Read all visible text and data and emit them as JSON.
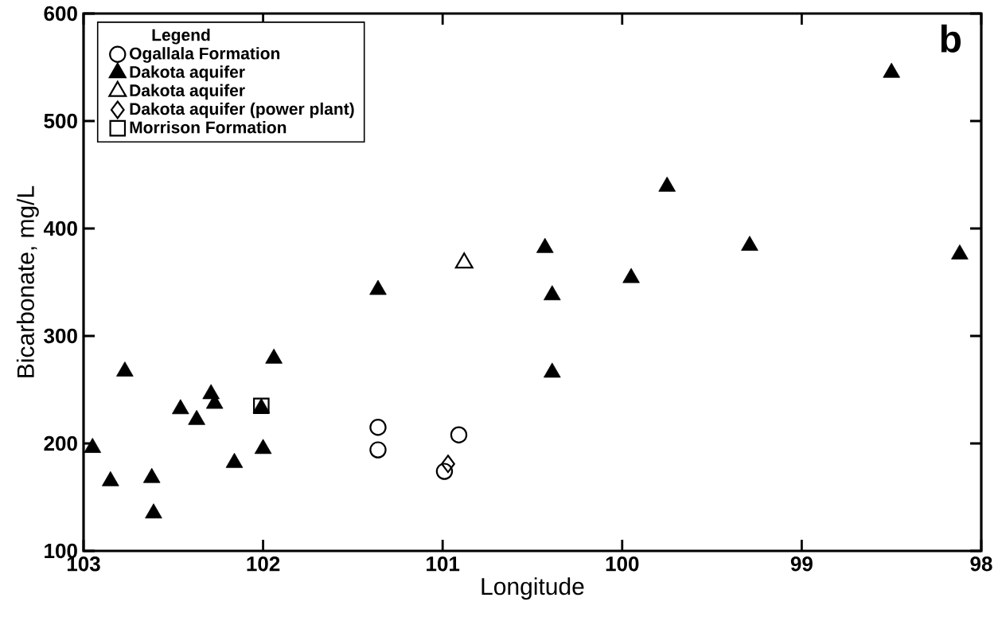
{
  "chart_data": {
    "type": "scatter",
    "xlabel": "Longitude",
    "ylabel": "Bicarbonate, mg/L",
    "legend_title": "Legend",
    "legend": "top left",
    "marker": "triangle",
    "annotations": [
      "b"
    ],
    "xlim": [
      103,
      98
    ],
    "xticks": [
      103,
      102,
      101,
      100,
      99,
      98
    ],
    "ylim": [
      100,
      600
    ],
    "yticks": [
      100,
      200,
      300,
      400,
      500,
      600
    ],
    "series": [
      {
        "name": "Ogallala Formation",
        "color": "#000000",
        "marker": "circle",
        "x": [
          101.36,
          101.36,
          100.91,
          100.99
        ],
        "values": [
          215,
          194,
          208,
          174
        ]
      },
      {
        "name": "Dakota aquifer",
        "color": "#000000",
        "x": [
          102.95,
          102.85,
          102.77,
          102.62,
          102.61,
          102.46,
          102.37,
          102.29,
          102.27,
          102.16,
          102.01,
          102.0,
          101.94,
          101.36,
          100.43,
          100.39,
          100.39,
          99.95,
          99.75,
          99.29,
          98.5,
          98.12
        ],
        "values": [
          196,
          165,
          267,
          168,
          135,
          232,
          222,
          246,
          237,
          182,
          233,
          195,
          279,
          343,
          382,
          338,
          266,
          354,
          439,
          384,
          545,
          376
        ]
      },
      {
        "name": "Dakota aquifer",
        "color": "#000000",
        "marker": "triangle",
        "x": [
          100.88
        ],
        "values": [
          368
        ]
      },
      {
        "name": "Dakota aquifer (power plant)",
        "color": "#000000",
        "marker": "diamond",
        "x": [
          100.97
        ],
        "values": [
          181
        ]
      },
      {
        "name": "Morrison Formation",
        "color": "#000000",
        "marker": "square",
        "x": [
          102.01
        ],
        "values": [
          235
        ]
      }
    ]
  }
}
